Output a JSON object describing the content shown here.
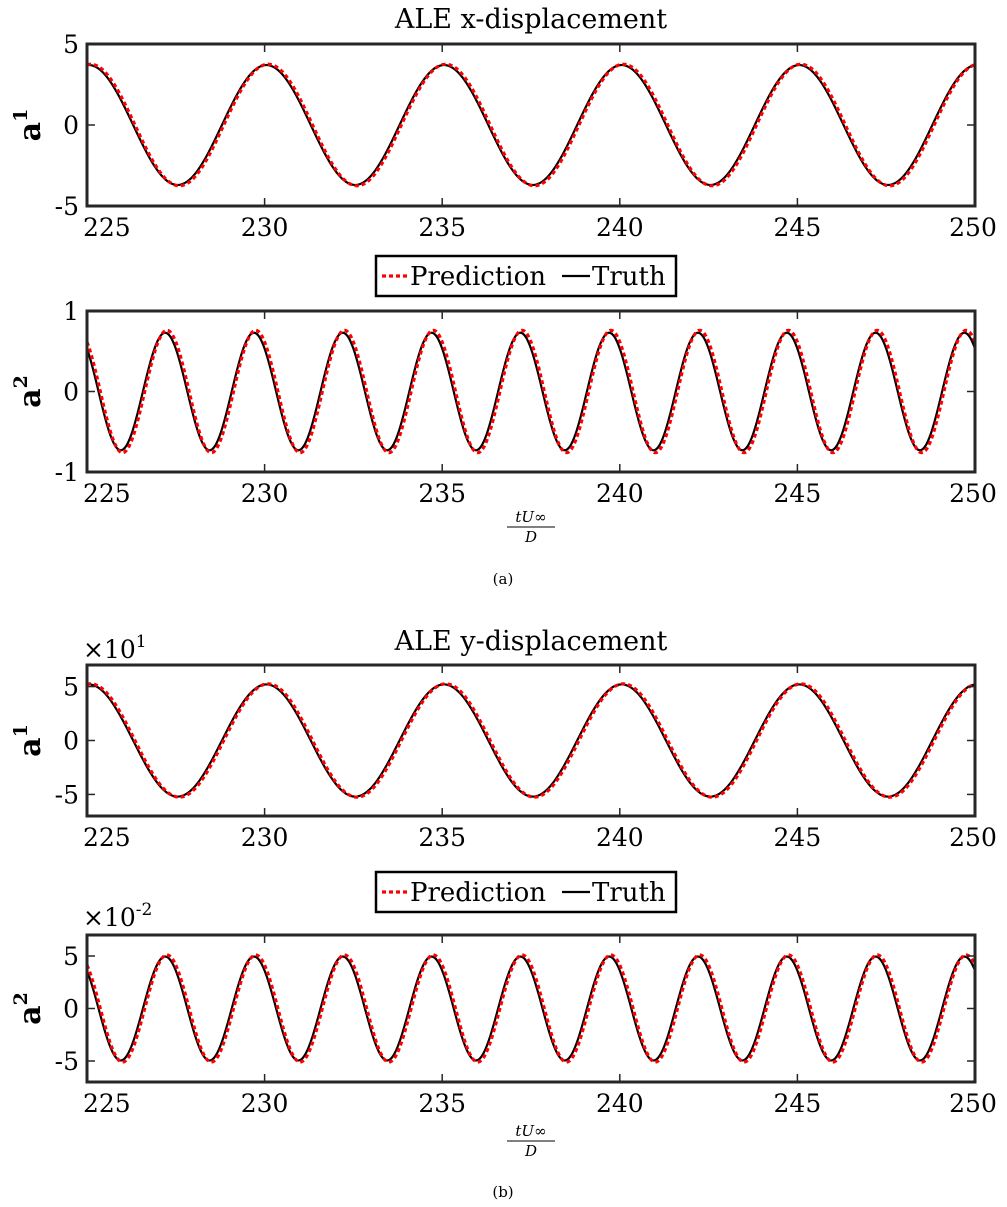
{
  "chart_data": [
    {
      "type": "line",
      "title": "ALE x-displacement",
      "ylabel": "a",
      "ylabel_sup": "1",
      "xlabel": "",
      "xlim": [
        225,
        250
      ],
      "ylim": [
        -5,
        5
      ],
      "xticks": [
        "225",
        "230",
        "235",
        "240",
        "245",
        "250"
      ],
      "yticks": [
        "-5",
        "0",
        "5"
      ],
      "exponent": "",
      "exponent_sup": "",
      "series": [
        {
          "name": "Prediction",
          "color": "#ff0000",
          "style": "dotted",
          "amplitude": 3.75,
          "period": 5.0,
          "peak_x": 230.1
        },
        {
          "name": "Truth",
          "color": "#000000",
          "style": "solid",
          "amplitude": 3.7,
          "period": 5.0,
          "peak_x": 230.05
        }
      ]
    },
    {
      "type": "line",
      "title": "",
      "ylabel": "a",
      "ylabel_sup": "2",
      "xlabel": "tU∞/D",
      "xlim": [
        225,
        250
      ],
      "ylim": [
        -1,
        1
      ],
      "xticks": [
        "225",
        "230",
        "235",
        "240",
        "245",
        "250"
      ],
      "yticks": [
        "-1",
        "0",
        "1"
      ],
      "exponent": "",
      "exponent_sup": "",
      "series": [
        {
          "name": "Prediction",
          "color": "#ff0000",
          "style": "dotted",
          "amplitude": 0.76,
          "period": 2.5,
          "peak_x": 229.75
        },
        {
          "name": "Truth",
          "color": "#000000",
          "style": "solid",
          "amplitude": 0.73,
          "period": 2.5,
          "peak_x": 229.7
        }
      ]
    },
    {
      "type": "line",
      "title": "ALE y-displacement",
      "ylabel": "a",
      "ylabel_sup": "1",
      "xlabel": "",
      "xlim": [
        225,
        250
      ],
      "ylim": [
        -7,
        7
      ],
      "xticks": [
        "225",
        "230",
        "235",
        "240",
        "245",
        "250"
      ],
      "yticks": [
        "-5",
        "0",
        "5"
      ],
      "exponent": "×10",
      "exponent_sup": "1",
      "series": [
        {
          "name": "Prediction",
          "color": "#ff0000",
          "style": "dotted",
          "amplitude": 5.25,
          "period": 5.0,
          "peak_x": 230.1
        },
        {
          "name": "Truth",
          "color": "#000000",
          "style": "solid",
          "amplitude": 5.2,
          "period": 5.0,
          "peak_x": 230.05
        }
      ]
    },
    {
      "type": "line",
      "title": "",
      "ylabel": "a",
      "ylabel_sup": "2",
      "xlabel": "tU∞/D",
      "xlim": [
        225,
        250
      ],
      "ylim": [
        -7,
        7
      ],
      "xticks": [
        "225",
        "230",
        "235",
        "240",
        "245",
        "250"
      ],
      "yticks": [
        "-5",
        "0",
        "5"
      ],
      "exponent": "×10",
      "exponent_sup": "-2",
      "series": [
        {
          "name": "Prediction",
          "color": "#ff0000",
          "style": "dotted",
          "amplitude": 5.1,
          "period": 2.5,
          "peak_x": 229.75
        },
        {
          "name": "Truth",
          "color": "#000000",
          "style": "solid",
          "amplitude": 4.95,
          "period": 2.5,
          "peak_x": 229.7
        }
      ]
    }
  ],
  "legend": [
    {
      "items": [
        "Prediction",
        "Truth"
      ]
    },
    {
      "items": [
        "Prediction",
        "Truth"
      ]
    }
  ],
  "captions": [
    "(a)",
    "(b)"
  ]
}
